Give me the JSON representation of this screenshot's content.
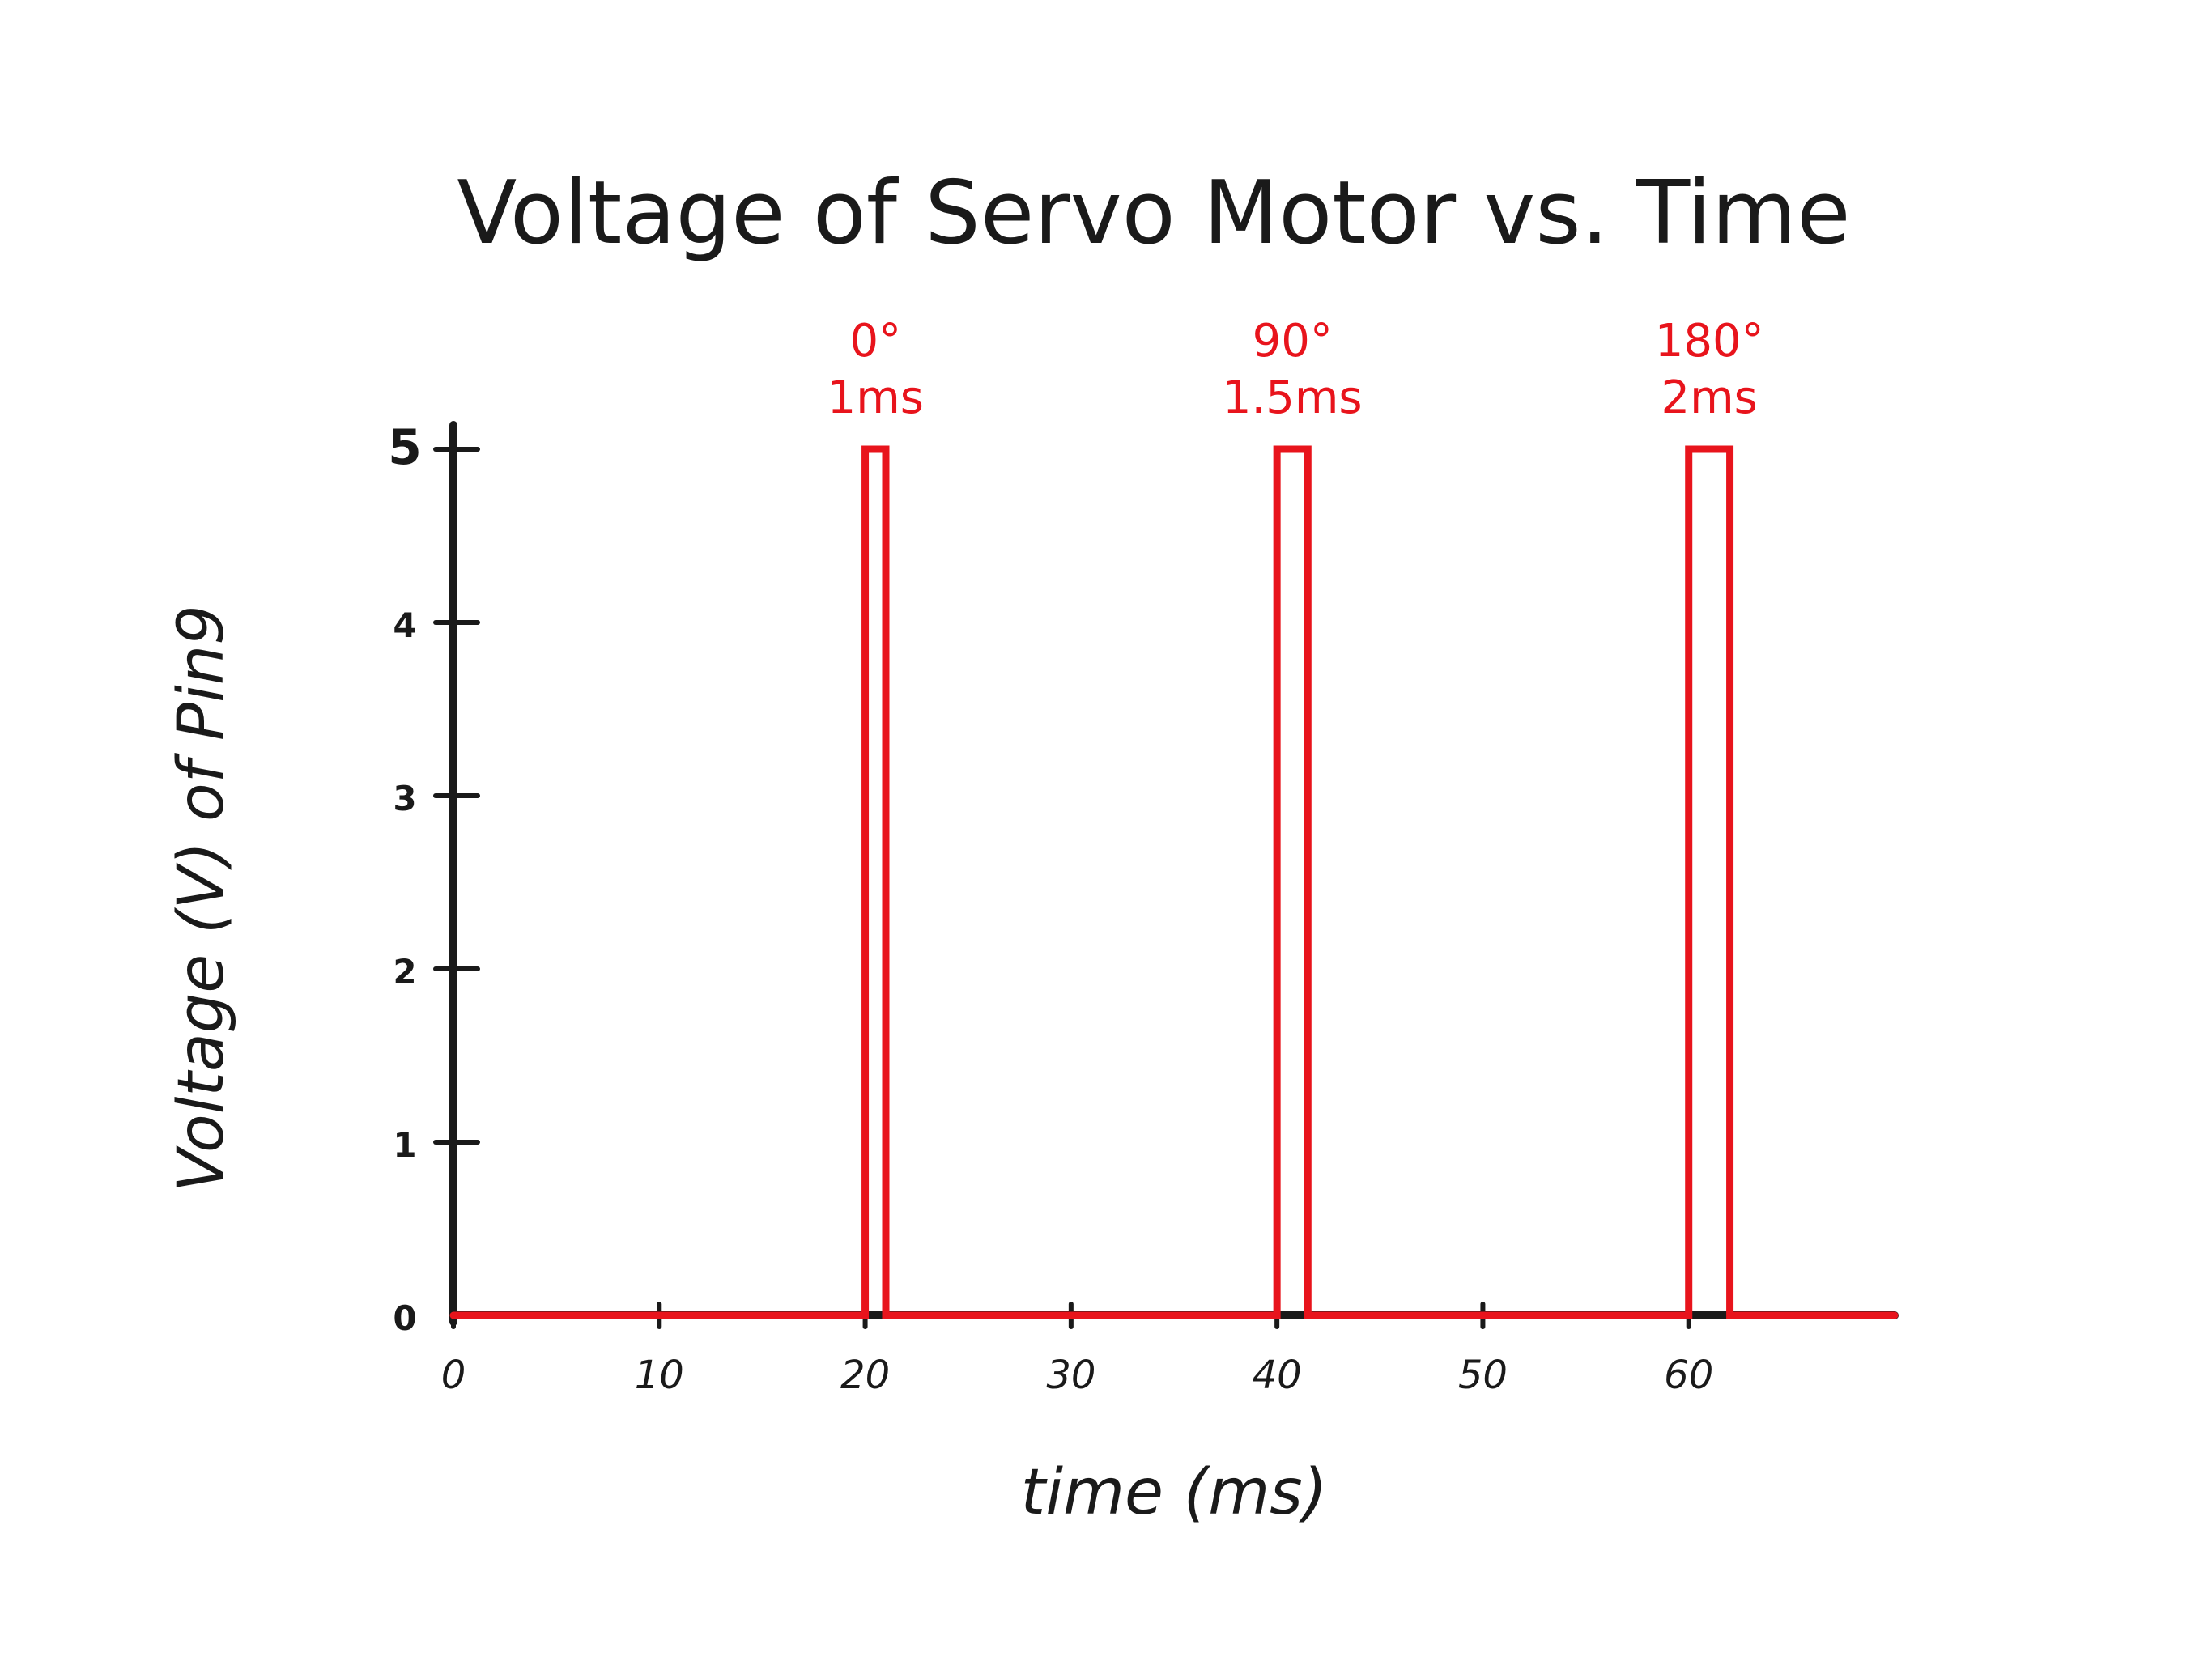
{
  "chart_data": {
    "type": "line",
    "title": "Voltage of Servo Motor vs. Time",
    "xlabel": "time (ms)",
    "ylabel": "Voltage (V) of Pin9",
    "xlim": [
      0,
      70
    ],
    "ylim": [
      0,
      5
    ],
    "x_ticks": [
      "0",
      "10",
      "20",
      "30",
      "40",
      "50",
      "60"
    ],
    "y_ticks": [
      "0",
      "1",
      "2",
      "3",
      "4",
      "5"
    ],
    "grid": false,
    "series": [
      {
        "x": [
          0,
          20,
          20,
          21,
          21,
          40,
          40,
          41.5,
          41.5,
          60,
          60,
          62,
          62,
          70
        ],
        "y": [
          0,
          0,
          5,
          5,
          0,
          0,
          5,
          5,
          0,
          0,
          5,
          5,
          0,
          0
        ]
      }
    ],
    "annotations": [
      {
        "x": 20.5,
        "angle": "0°",
        "width": "1ms"
      },
      {
        "x": 40.75,
        "angle": "90°",
        "width": "1.5ms"
      },
      {
        "x": 61,
        "angle": "180°",
        "width": "2ms"
      }
    ],
    "colors": {
      "axis": "#1a1a1a",
      "signal": "#e8141c"
    }
  }
}
